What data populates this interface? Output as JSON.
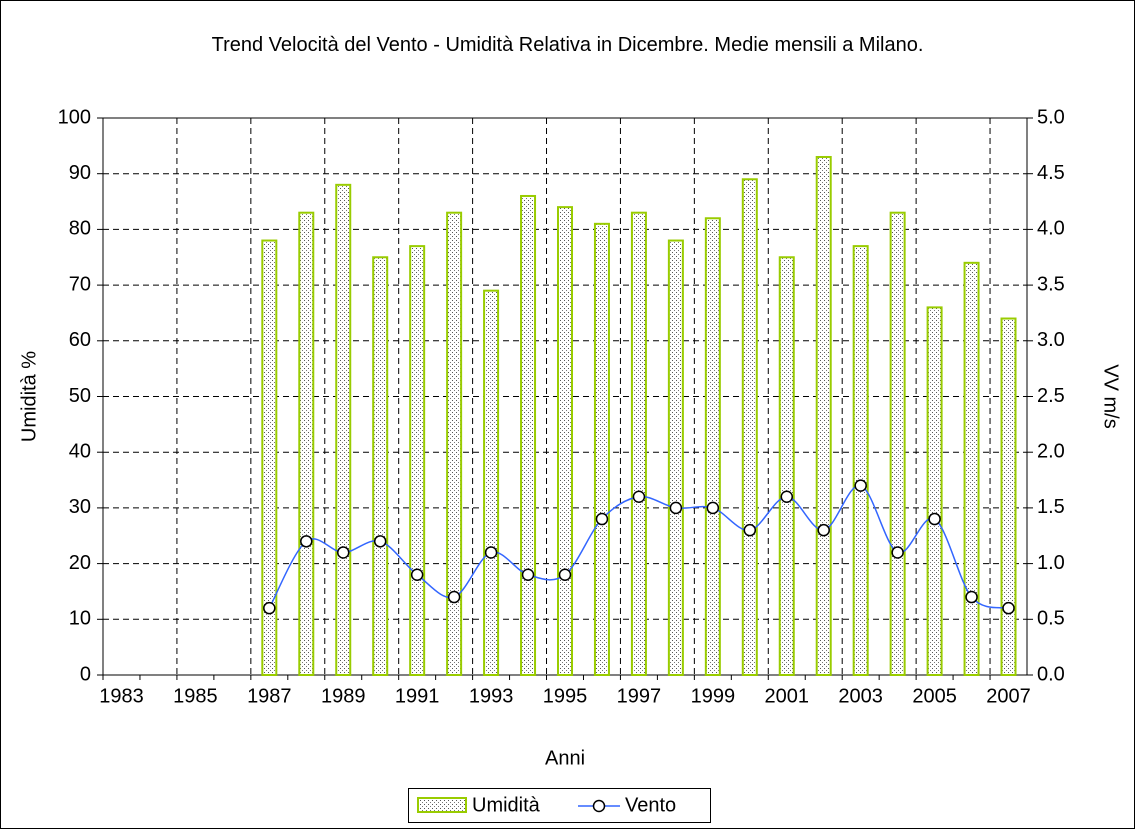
{
  "chart_data": {
    "type": "bar_line",
    "title": "Trend Velocità del Vento - Umidità Relativa in Dicembre. Medie mensili a Milano.",
    "x_label": "Anni",
    "y_label": "Umidità  %",
    "y2_label": "VV  m/s",
    "categories": [
      "1983",
      null,
      "1985",
      null,
      "1987",
      null,
      "1989",
      null,
      "1991",
      null,
      "1993",
      null,
      "1995",
      null,
      "1997",
      null,
      "1999",
      null,
      "2001",
      null,
      "2003",
      null,
      "2005",
      null,
      "2007"
    ],
    "series": [
      {
        "name": "Umidità",
        "type": "bar",
        "color": "#99cc00",
        "values": [
          null,
          null,
          null,
          null,
          78,
          83,
          88,
          75,
          77,
          83,
          69,
          86,
          84,
          81,
          83,
          78,
          82,
          89,
          75,
          93,
          77,
          83,
          66,
          74,
          64
        ]
      },
      {
        "name": "Vento",
        "type": "line",
        "axis": "y2",
        "color": "#3366ff",
        "values": [
          null,
          null,
          null,
          null,
          0.6,
          1.2,
          1.1,
          1.2,
          0.9,
          0.7,
          1.1,
          0.9,
          0.9,
          1.4,
          1.6,
          1.5,
          1.5,
          1.3,
          1.6,
          1.3,
          1.7,
          1.1,
          1.4,
          0.7,
          0.6
        ]
      }
    ],
    "ylim": [
      0,
      100
    ],
    "yticks": [
      0,
      10,
      20,
      30,
      40,
      50,
      60,
      70,
      80,
      90,
      100
    ],
    "y2lim": [
      0,
      5
    ],
    "y2ticks": [
      {
        "value": 0,
        "label": "0.0"
      },
      {
        "value": 0.5,
        "label": "0.5"
      },
      {
        "value": 1,
        "label": "1.0"
      },
      {
        "value": 1.5,
        "label": "1.5"
      },
      {
        "value": 2,
        "label": "2.0"
      },
      {
        "value": 2.5,
        "label": "2.5"
      },
      {
        "value": 3,
        "label": "3.0"
      },
      {
        "value": 3.5,
        "label": "3.5"
      },
      {
        "value": 4,
        "label": "4.0"
      },
      {
        "value": 4.5,
        "label": "4.5"
      },
      {
        "value": 5,
        "label": "5.0"
      }
    ],
    "grid": true,
    "legend": "bottom"
  }
}
